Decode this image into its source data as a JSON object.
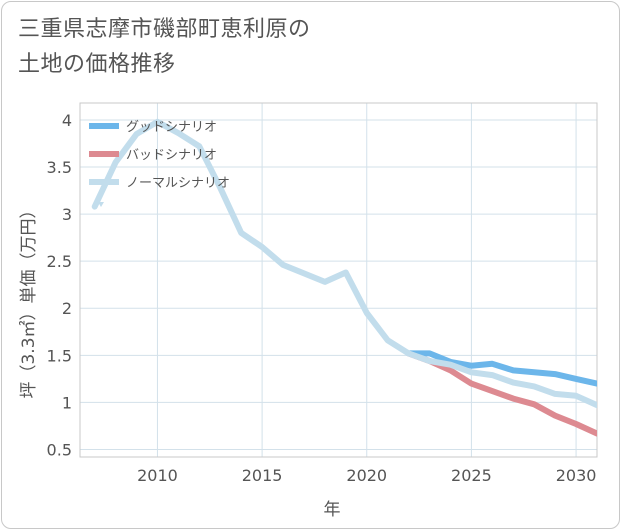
{
  "title_lines": [
    "三重県志摩市磯部町恵利原の",
    "土地の価格推移"
  ],
  "chart_data": {
    "type": "line",
    "title": "三重県志摩市磯部町恵利原の土地の価格推移",
    "xlabel": "年",
    "ylabel": "坪（3.3㎡）単価（万円）",
    "xlim": [
      2006.3,
      2031.0
    ],
    "ylim": [
      0.42,
      4.18
    ],
    "xticks": [
      2010,
      2015,
      2020,
      2025,
      2030
    ],
    "yticks": [
      0.5,
      1,
      1.5,
      2,
      2.5,
      3,
      3.5,
      4
    ],
    "ytick_labels": [
      "0.5",
      "1",
      "1.5",
      "2",
      "2.5",
      "3",
      "3.5",
      "4"
    ],
    "grid": true,
    "legend_position": "top-left",
    "series": [
      {
        "name": "グッドシナリオ",
        "color": "#6cb6ea",
        "x": [
          2022,
          2023,
          2024,
          2025,
          2026,
          2027,
          2028,
          2029,
          2030,
          2031
        ],
        "y": [
          1.52,
          1.52,
          1.43,
          1.39,
          1.41,
          1.34,
          1.32,
          1.3,
          1.25,
          1.2
        ]
      },
      {
        "name": "バッドシナリオ",
        "color": "#dd8a91",
        "x": [
          2022,
          2023,
          2024,
          2025,
          2026,
          2027,
          2028,
          2029,
          2030,
          2031
        ],
        "y": [
          1.52,
          1.44,
          1.34,
          1.2,
          1.12,
          1.04,
          0.98,
          0.86,
          0.77,
          0.67
        ]
      },
      {
        "name": "ノーマルシナリオ",
        "color": "#c2ddec",
        "x": [
          2007,
          2008,
          2009,
          2010,
          2011,
          2012,
          2013,
          2014,
          2015,
          2016,
          2017,
          2018,
          2019,
          2020,
          2021,
          2022,
          2023,
          2024,
          2025,
          2026,
          2027,
          2028,
          2029,
          2030,
          2031
        ],
        "y": [
          3.08,
          3.55,
          3.85,
          3.98,
          3.86,
          3.72,
          3.28,
          2.8,
          2.65,
          2.46,
          2.37,
          2.28,
          2.38,
          1.95,
          1.66,
          1.52,
          1.44,
          1.4,
          1.32,
          1.29,
          1.21,
          1.17,
          1.09,
          1.07,
          0.97
        ]
      }
    ]
  }
}
